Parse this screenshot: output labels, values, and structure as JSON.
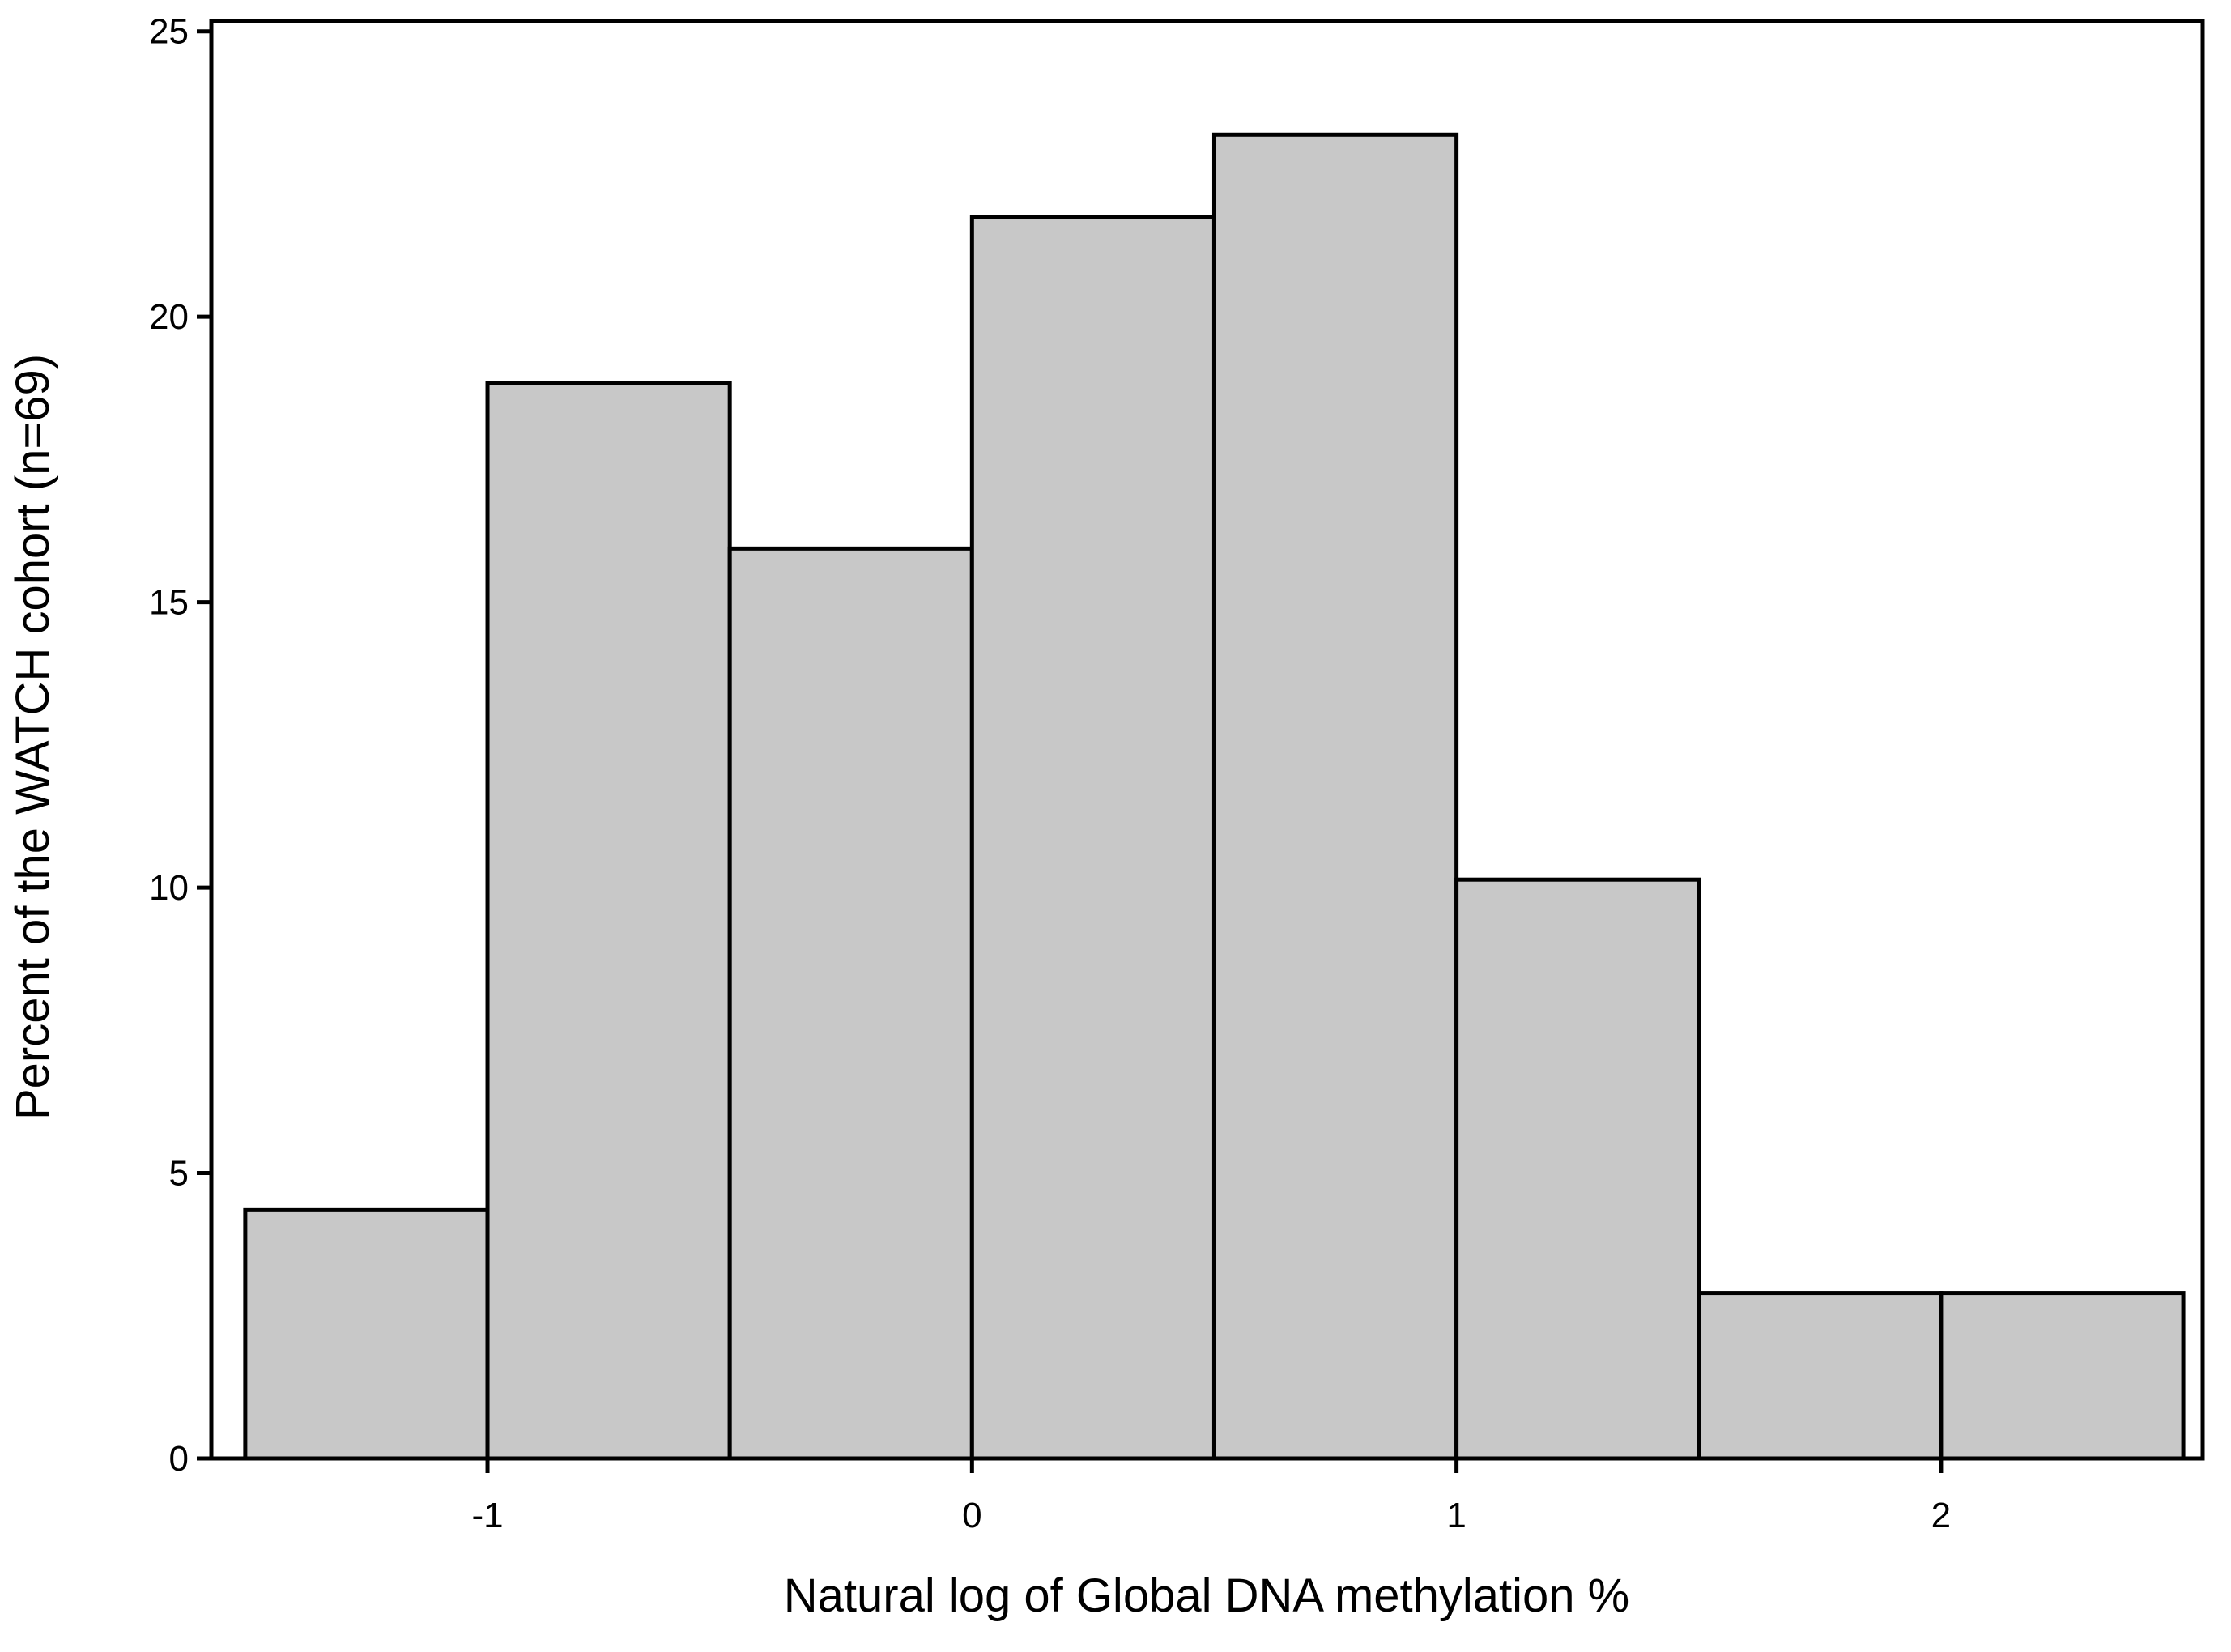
{
  "chart_data": {
    "type": "histogram",
    "x_label": "Natural log of Global DNA methylation %",
    "y_label": "Percent of the WATCH cohort (n=69)",
    "bins": [
      -1.5,
      -1,
      -0.5,
      0,
      0.5,
      1,
      1.5,
      2,
      2.5
    ],
    "values": [
      4.35,
      18.84,
      15.94,
      21.74,
      23.19,
      10.14,
      2.9,
      2.9
    ],
    "color": "#c8c8c8",
    "xlim": [
      -1.57,
      2.54
    ],
    "xticks": [
      -1,
      0,
      1,
      2
    ],
    "ylim": [
      0,
      25.18
    ],
    "yticks": [
      0,
      5,
      10,
      15,
      20,
      25
    ]
  }
}
